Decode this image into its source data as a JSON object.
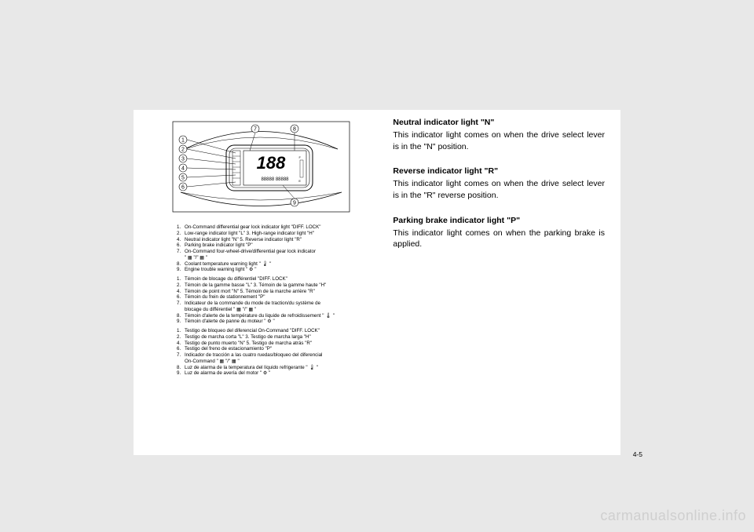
{
  "diagram_callouts": [
    "1",
    "2",
    "3",
    "4",
    "5",
    "6",
    "7",
    "8",
    "9"
  ],
  "legend_en": [
    {
      "n": "1.",
      "t": "On-Command differential gear lock indicator light \"DIFF. LOCK\""
    },
    {
      "n": "2.",
      "t": "Low-range indicator light \"L\"    3.   High-range indicator light \"H\""
    },
    {
      "n": "4.",
      "t": "Neutral indicator light \"N\"       5.   Reverse indicator light \"R\""
    },
    {
      "n": "6.",
      "t": "Parking brake indicator light \"P\""
    },
    {
      "n": "7.",
      "t": "On-Command four-wheel-drive/differential gear lock indicator"
    },
    {
      "n": "",
      "t": "\" ▦ \"/\" ▦ \""
    },
    {
      "n": "8.",
      "t": "Coolant temperature warning light \" 🌡 \""
    },
    {
      "n": "9.",
      "t": "Engine trouble warning light \" ⚙ \""
    }
  ],
  "legend_fr": [
    {
      "n": "1.",
      "t": "Témoin de blocage du différentiel \"DIFF. LOCK\""
    },
    {
      "n": "2.",
      "t": "Témoin de la gamme basse \"L\"   3.   Témoin de la gamme haute \"H\""
    },
    {
      "n": "4.",
      "t": "Témoin de point mort \"N\"        5.   Témoin de la marche arrière \"R\""
    },
    {
      "n": "6.",
      "t": "Témoin du frein de stationnement \"P\""
    },
    {
      "n": "7.",
      "t": "Indicateur de la commande du mode de traction/du système de"
    },
    {
      "n": "",
      "t": "blocage du différentiel \" ▦ \"/\" ▦ \""
    },
    {
      "n": "8.",
      "t": "Témoin d'alerte de la température du liquide de refroidissement \" 🌡 \""
    },
    {
      "n": "9.",
      "t": "Témoin d'alerte de panne du moteur \" ⚙ \""
    }
  ],
  "legend_es": [
    {
      "n": "1.",
      "t": "Testigo de bloqueo del diferencial On-Command \"DIFF. LOCK\""
    },
    {
      "n": "2.",
      "t": "Testigo de marcha corta \"L\"    3.   Testigo de marcha larga \"H\""
    },
    {
      "n": "4.",
      "t": "Testigo de punto muerto \"N\"    5.   Testigo de marcha atrás \"R\""
    },
    {
      "n": "6.",
      "t": "Testigo del freno de estacionamiento \"P\""
    },
    {
      "n": "7.",
      "t": "Indicador de tracción a las cuatro ruedas/bloqueo del diferencial"
    },
    {
      "n": "",
      "t": "On-Command \" ▦ \"/\" ▦ \""
    },
    {
      "n": "8.",
      "t": "Luz de alarma de la temperatura del líquido refrigerante \" 🌡 \""
    },
    {
      "n": "9.",
      "t": "Luz de alarma de avería del motor \" ⚙ \""
    }
  ],
  "right_sections": [
    {
      "heading": "Neutral indicator light \"N\"",
      "body": "This indicator light comes on when the drive select lever is in the \"N\" position."
    },
    {
      "heading": "Reverse indicator light \"R\"",
      "body": "This indicator light comes on when the drive select lever is in the \"R\" reverse position."
    },
    {
      "heading": "Parking brake indicator light \"P\"",
      "body_justified": true,
      "body": "This indicator light comes on when the parking brake is applied."
    }
  ],
  "pagenum": "4-5",
  "watermark": "carmanualsonline.info",
  "lcd_display": "188",
  "lcd_sub": "88888 88888"
}
